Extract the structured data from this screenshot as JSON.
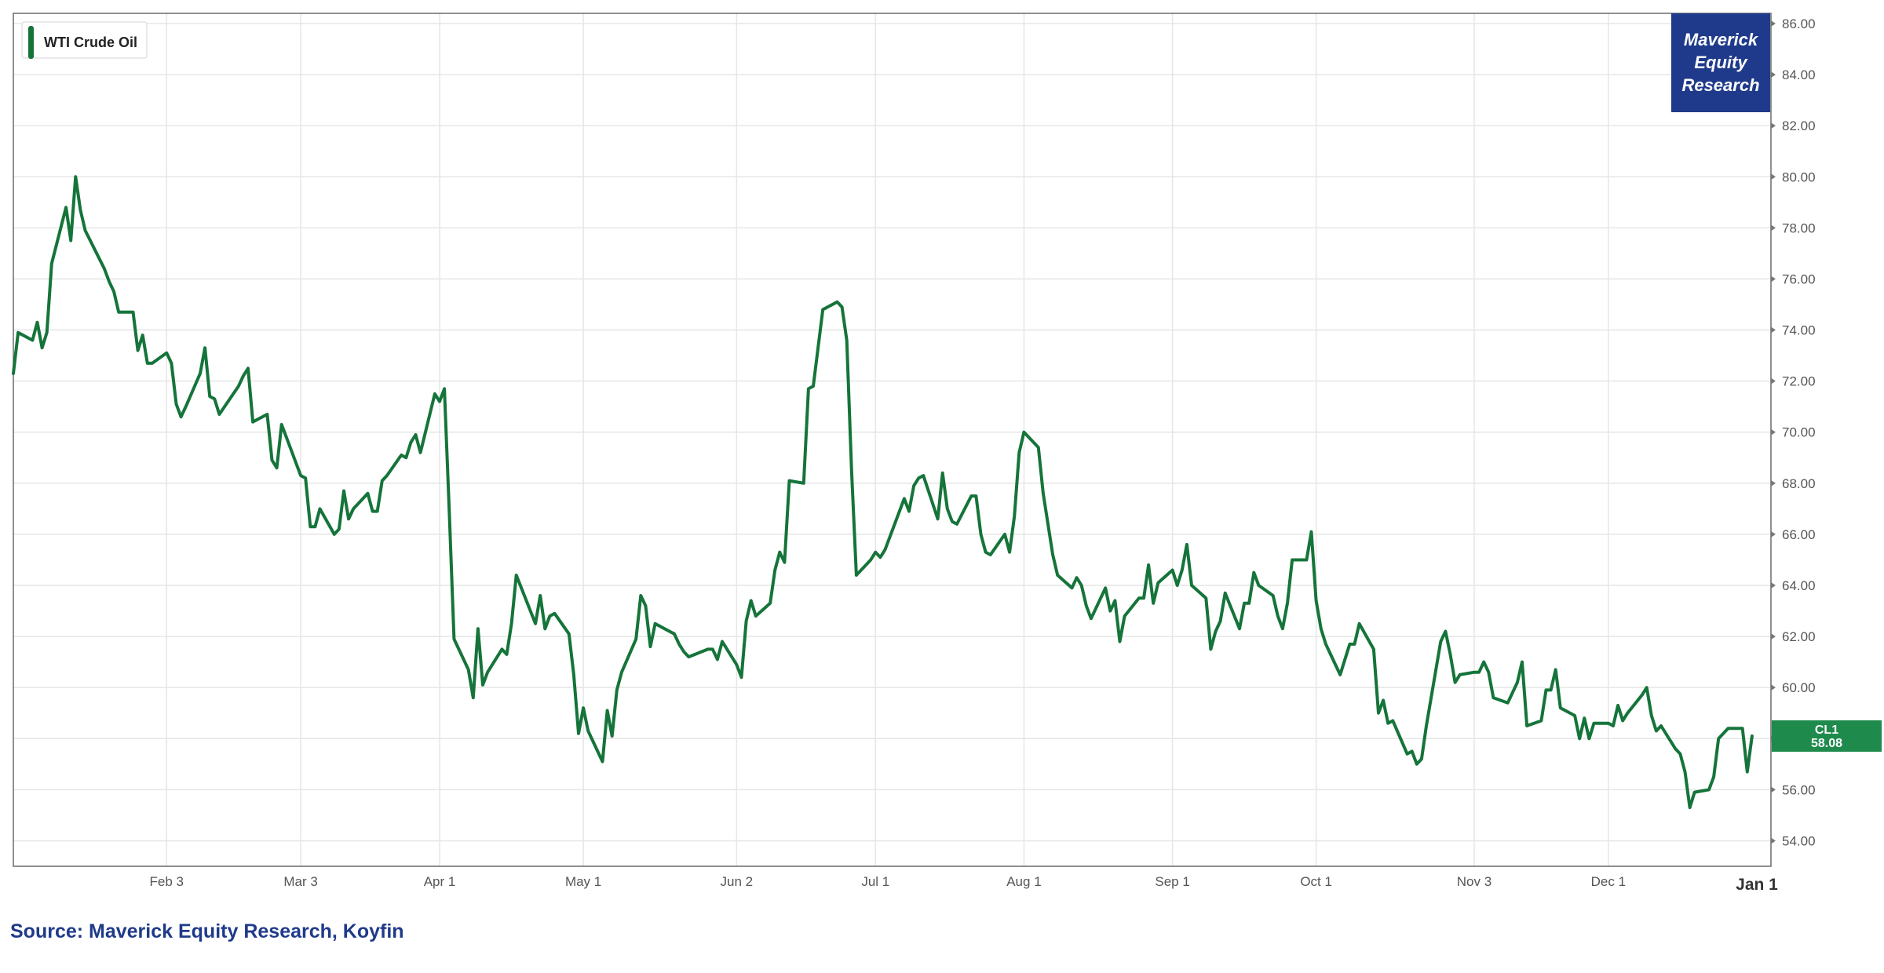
{
  "source_label": "Source: Maverick Equity Research, Koyfin",
  "brand": {
    "line1": "Maverick",
    "line2": "Equity",
    "line3": "Research",
    "color": "#1f3a8a"
  },
  "chart_data": {
    "type": "line",
    "title": "",
    "xlabel": "",
    "ylabel": "",
    "ylim": [
      53,
      86.4
    ],
    "yticks": [
      54,
      56,
      58,
      60,
      62,
      64,
      66,
      68,
      70,
      72,
      74,
      76,
      78,
      80,
      82,
      84,
      86
    ],
    "ytick_labels": [
      "54.00",
      "56.00",
      "58.00",
      "60.00",
      "62.00",
      "64.00",
      "66.00",
      "68.00",
      "70.00",
      "72.00",
      "74.00",
      "76.00",
      "78.00",
      "80.00",
      "82.00",
      "84.00",
      "86.00"
    ],
    "xticks": [
      {
        "label": "Feb 3",
        "date": "2025-02-03"
      },
      {
        "label": "Mar 3",
        "date": "2025-03-03"
      },
      {
        "label": "Apr 1",
        "date": "2025-04-01"
      },
      {
        "label": "May 1",
        "date": "2025-05-01"
      },
      {
        "label": "Jun 2",
        "date": "2025-06-02"
      },
      {
        "label": "Jul 1",
        "date": "2025-07-01"
      },
      {
        "label": "Aug 1",
        "date": "2025-08-01"
      },
      {
        "label": "Sep 1",
        "date": "2025-09-01"
      },
      {
        "label": "Oct 1",
        "date": "2025-10-01"
      },
      {
        "label": "Nov 3",
        "date": "2025-11-03"
      },
      {
        "label": "Dec 1",
        "date": "2025-12-01"
      },
      {
        "label": "Jan 1",
        "date": "2026-01-01"
      }
    ],
    "grid": true,
    "legend_position": "top-left",
    "series": [
      {
        "name": "WTI Crude Oil",
        "color": "#15743a",
        "last_value_label": "CL1",
        "last_value_text": "58.08",
        "points": [
          [
            "2025-01-02",
            72.3
          ],
          [
            "2025-01-03",
            73.9
          ],
          [
            "2025-01-06",
            73.6
          ],
          [
            "2025-01-07",
            74.3
          ],
          [
            "2025-01-08",
            73.3
          ],
          [
            "2025-01-09",
            73.9
          ],
          [
            "2025-01-10",
            76.6
          ],
          [
            "2025-01-13",
            78.8
          ],
          [
            "2025-01-14",
            77.5
          ],
          [
            "2025-01-15",
            80.0
          ],
          [
            "2025-01-16",
            78.7
          ],
          [
            "2025-01-17",
            77.9
          ],
          [
            "2025-01-21",
            76.4
          ],
          [
            "2025-01-22",
            75.9
          ],
          [
            "2025-01-23",
            75.5
          ],
          [
            "2025-01-24",
            74.7
          ],
          [
            "2025-01-27",
            74.7
          ],
          [
            "2025-01-28",
            73.2
          ],
          [
            "2025-01-29",
            73.8
          ],
          [
            "2025-01-30",
            72.7
          ],
          [
            "2025-01-31",
            72.7
          ],
          [
            "2025-02-03",
            73.1
          ],
          [
            "2025-02-04",
            72.7
          ],
          [
            "2025-02-05",
            71.1
          ],
          [
            "2025-02-06",
            70.6
          ],
          [
            "2025-02-07",
            71.0
          ],
          [
            "2025-02-10",
            72.3
          ],
          [
            "2025-02-11",
            73.3
          ],
          [
            "2025-02-12",
            71.4
          ],
          [
            "2025-02-13",
            71.3
          ],
          [
            "2025-02-14",
            70.7
          ],
          [
            "2025-02-18",
            71.8
          ],
          [
            "2025-02-19",
            72.2
          ],
          [
            "2025-02-20",
            72.5
          ],
          [
            "2025-02-21",
            70.4
          ],
          [
            "2025-02-24",
            70.7
          ],
          [
            "2025-02-25",
            68.9
          ],
          [
            "2025-02-26",
            68.6
          ],
          [
            "2025-02-27",
            70.3
          ],
          [
            "2025-02-28",
            69.8
          ],
          [
            "2025-03-03",
            68.3
          ],
          [
            "2025-03-04",
            68.2
          ],
          [
            "2025-03-05",
            66.3
          ],
          [
            "2025-03-06",
            66.3
          ],
          [
            "2025-03-07",
            67.0
          ],
          [
            "2025-03-10",
            66.0
          ],
          [
            "2025-03-11",
            66.2
          ],
          [
            "2025-03-12",
            67.7
          ],
          [
            "2025-03-13",
            66.6
          ],
          [
            "2025-03-14",
            67.0
          ],
          [
            "2025-03-17",
            67.6
          ],
          [
            "2025-03-18",
            66.9
          ],
          [
            "2025-03-19",
            66.9
          ],
          [
            "2025-03-20",
            68.1
          ],
          [
            "2025-03-21",
            68.3
          ],
          [
            "2025-03-24",
            69.1
          ],
          [
            "2025-03-25",
            69.0
          ],
          [
            "2025-03-26",
            69.6
          ],
          [
            "2025-03-27",
            69.9
          ],
          [
            "2025-03-28",
            69.2
          ],
          [
            "2025-03-31",
            71.5
          ],
          [
            "2025-04-01",
            71.2
          ],
          [
            "2025-04-02",
            71.7
          ],
          [
            "2025-04-03",
            66.9
          ],
          [
            "2025-04-04",
            61.9
          ],
          [
            "2025-04-07",
            60.7
          ],
          [
            "2025-04-08",
            59.6
          ],
          [
            "2025-04-09",
            62.3
          ],
          [
            "2025-04-10",
            60.1
          ],
          [
            "2025-04-11",
            60.6
          ],
          [
            "2025-04-14",
            61.5
          ],
          [
            "2025-04-15",
            61.3
          ],
          [
            "2025-04-16",
            62.5
          ],
          [
            "2025-04-17",
            64.4
          ],
          [
            "2025-04-21",
            62.5
          ],
          [
            "2025-04-22",
            63.6
          ],
          [
            "2025-04-23",
            62.3
          ],
          [
            "2025-04-24",
            62.8
          ],
          [
            "2025-04-25",
            62.9
          ],
          [
            "2025-04-28",
            62.1
          ],
          [
            "2025-04-29",
            60.5
          ],
          [
            "2025-04-30",
            58.2
          ],
          [
            "2025-05-01",
            59.2
          ],
          [
            "2025-05-02",
            58.3
          ],
          [
            "2025-05-05",
            57.1
          ],
          [
            "2025-05-06",
            59.1
          ],
          [
            "2025-05-07",
            58.1
          ],
          [
            "2025-05-08",
            59.9
          ],
          [
            "2025-05-09",
            60.6
          ],
          [
            "2025-05-12",
            61.9
          ],
          [
            "2025-05-13",
            63.6
          ],
          [
            "2025-05-14",
            63.2
          ],
          [
            "2025-05-15",
            61.6
          ],
          [
            "2025-05-16",
            62.5
          ],
          [
            "2025-05-19",
            62.2
          ],
          [
            "2025-05-20",
            62.1
          ],
          [
            "2025-05-21",
            61.7
          ],
          [
            "2025-05-22",
            61.4
          ],
          [
            "2025-05-23",
            61.2
          ],
          [
            "2025-05-27",
            61.5
          ],
          [
            "2025-05-28",
            61.5
          ],
          [
            "2025-05-29",
            61.1
          ],
          [
            "2025-05-30",
            61.8
          ],
          [
            "2025-06-02",
            60.9
          ],
          [
            "2025-06-03",
            60.4
          ],
          [
            "2025-06-04",
            62.6
          ],
          [
            "2025-06-05",
            63.4
          ],
          [
            "2025-06-06",
            62.8
          ],
          [
            "2025-06-09",
            63.3
          ],
          [
            "2025-06-10",
            64.6
          ],
          [
            "2025-06-11",
            65.3
          ],
          [
            "2025-06-12",
            64.9
          ],
          [
            "2025-06-13",
            68.1
          ],
          [
            "2025-06-16",
            68.0
          ],
          [
            "2025-06-17",
            71.7
          ],
          [
            "2025-06-18",
            71.8
          ],
          [
            "2025-06-20",
            74.8
          ],
          [
            "2025-06-23",
            75.1
          ],
          [
            "2025-06-24",
            74.9
          ],
          [
            "2025-06-25",
            73.6
          ],
          [
            "2025-06-26",
            68.5
          ],
          [
            "2025-06-27",
            64.4
          ],
          [
            "2025-06-30",
            65.0
          ],
          [
            "2025-07-01",
            65.3
          ],
          [
            "2025-07-02",
            65.1
          ],
          [
            "2025-07-03",
            65.4
          ],
          [
            "2025-07-07",
            67.4
          ],
          [
            "2025-07-08",
            66.9
          ],
          [
            "2025-07-09",
            67.9
          ],
          [
            "2025-07-10",
            68.2
          ],
          [
            "2025-07-11",
            68.3
          ],
          [
            "2025-07-14",
            66.6
          ],
          [
            "2025-07-15",
            68.4
          ],
          [
            "2025-07-16",
            67.0
          ],
          [
            "2025-07-17",
            66.5
          ],
          [
            "2025-07-18",
            66.4
          ],
          [
            "2025-07-21",
            67.5
          ],
          [
            "2025-07-22",
            67.5
          ],
          [
            "2025-07-23",
            66.0
          ],
          [
            "2025-07-24",
            65.3
          ],
          [
            "2025-07-25",
            65.2
          ],
          [
            "2025-07-28",
            66.0
          ],
          [
            "2025-07-29",
            65.3
          ],
          [
            "2025-07-30",
            66.7
          ],
          [
            "2025-07-31",
            69.2
          ],
          [
            "2025-08-01",
            70.0
          ],
          [
            "2025-08-04",
            69.4
          ],
          [
            "2025-08-05",
            67.6
          ],
          [
            "2025-08-06",
            66.4
          ],
          [
            "2025-08-07",
            65.2
          ],
          [
            "2025-08-08",
            64.4
          ],
          [
            "2025-08-11",
            63.9
          ],
          [
            "2025-08-12",
            64.3
          ],
          [
            "2025-08-13",
            64.0
          ],
          [
            "2025-08-14",
            63.2
          ],
          [
            "2025-08-15",
            62.7
          ],
          [
            "2025-08-18",
            63.9
          ],
          [
            "2025-08-19",
            63.0
          ],
          [
            "2025-08-20",
            63.4
          ],
          [
            "2025-08-21",
            61.8
          ],
          [
            "2025-08-22",
            62.8
          ],
          [
            "2025-08-25",
            63.5
          ],
          [
            "2025-08-26",
            63.5
          ],
          [
            "2025-08-27",
            64.8
          ],
          [
            "2025-08-28",
            63.3
          ],
          [
            "2025-08-29",
            64.1
          ],
          [
            "2025-09-01",
            64.6
          ],
          [
            "2025-09-02",
            64.0
          ],
          [
            "2025-09-03",
            64.6
          ],
          [
            "2025-09-04",
            65.6
          ],
          [
            "2025-09-05",
            64.0
          ],
          [
            "2025-09-08",
            63.5
          ],
          [
            "2025-09-09",
            61.5
          ],
          [
            "2025-09-10",
            62.2
          ],
          [
            "2025-09-11",
            62.6
          ],
          [
            "2025-09-12",
            63.7
          ],
          [
            "2025-09-15",
            62.3
          ],
          [
            "2025-09-16",
            63.3
          ],
          [
            "2025-09-17",
            63.3
          ],
          [
            "2025-09-18",
            64.5
          ],
          [
            "2025-09-19",
            64.0
          ],
          [
            "2025-09-22",
            63.6
          ],
          [
            "2025-09-23",
            62.8
          ],
          [
            "2025-09-24",
            62.3
          ],
          [
            "2025-09-25",
            63.3
          ],
          [
            "2025-09-26",
            65.0
          ],
          [
            "2025-09-29",
            65.0
          ],
          [
            "2025-09-30",
            66.1
          ],
          [
            "2025-10-01",
            63.4
          ],
          [
            "2025-10-02",
            62.3
          ],
          [
            "2025-10-03",
            61.7
          ],
          [
            "2025-10-06",
            60.5
          ],
          [
            "2025-10-07",
            61.1
          ],
          [
            "2025-10-08",
            61.7
          ],
          [
            "2025-10-09",
            61.7
          ],
          [
            "2025-10-10",
            62.5
          ],
          [
            "2025-10-13",
            61.5
          ],
          [
            "2025-10-14",
            59.0
          ],
          [
            "2025-10-15",
            59.5
          ],
          [
            "2025-10-16",
            58.6
          ],
          [
            "2025-10-17",
            58.7
          ],
          [
            "2025-10-20",
            57.4
          ],
          [
            "2025-10-21",
            57.5
          ],
          [
            "2025-10-22",
            57.0
          ],
          [
            "2025-10-23",
            57.2
          ],
          [
            "2025-10-24",
            58.5
          ],
          [
            "2025-10-27",
            61.8
          ],
          [
            "2025-10-28",
            62.2
          ],
          [
            "2025-10-29",
            61.3
          ],
          [
            "2025-10-30",
            60.2
          ],
          [
            "2025-10-31",
            60.5
          ],
          [
            "2025-11-03",
            60.6
          ],
          [
            "2025-11-04",
            60.6
          ],
          [
            "2025-11-05",
            61.0
          ],
          [
            "2025-11-06",
            60.6
          ],
          [
            "2025-11-07",
            59.6
          ],
          [
            "2025-11-10",
            59.4
          ],
          [
            "2025-11-11",
            59.8
          ],
          [
            "2025-11-12",
            60.2
          ],
          [
            "2025-11-13",
            61.0
          ],
          [
            "2025-11-14",
            58.5
          ],
          [
            "2025-11-17",
            58.7
          ],
          [
            "2025-11-18",
            59.9
          ],
          [
            "2025-11-19",
            59.9
          ],
          [
            "2025-11-20",
            60.7
          ],
          [
            "2025-11-21",
            59.2
          ],
          [
            "2025-11-24",
            58.9
          ],
          [
            "2025-11-25",
            58.0
          ],
          [
            "2025-11-26",
            58.8
          ],
          [
            "2025-11-27",
            58.0
          ],
          [
            "2025-11-28",
            58.6
          ],
          [
            "2025-12-01",
            58.6
          ],
          [
            "2025-12-02",
            58.5
          ],
          [
            "2025-12-03",
            59.3
          ],
          [
            "2025-12-04",
            58.7
          ],
          [
            "2025-12-05",
            59.0
          ],
          [
            "2025-12-08",
            59.7
          ],
          [
            "2025-12-09",
            60.0
          ],
          [
            "2025-12-10",
            58.9
          ],
          [
            "2025-12-11",
            58.3
          ],
          [
            "2025-12-12",
            58.5
          ],
          [
            "2025-12-15",
            57.6
          ],
          [
            "2025-12-16",
            57.4
          ],
          [
            "2025-12-17",
            56.7
          ],
          [
            "2025-12-18",
            55.3
          ],
          [
            "2025-12-19",
            55.9
          ],
          [
            "2025-12-22",
            56.0
          ],
          [
            "2025-12-23",
            56.5
          ],
          [
            "2025-12-24",
            58.0
          ],
          [
            "2025-12-26",
            58.4
          ],
          [
            "2025-12-29",
            58.4
          ],
          [
            "2025-12-30",
            56.7
          ],
          [
            "2025-12-31",
            58.1
          ]
        ]
      }
    ]
  }
}
